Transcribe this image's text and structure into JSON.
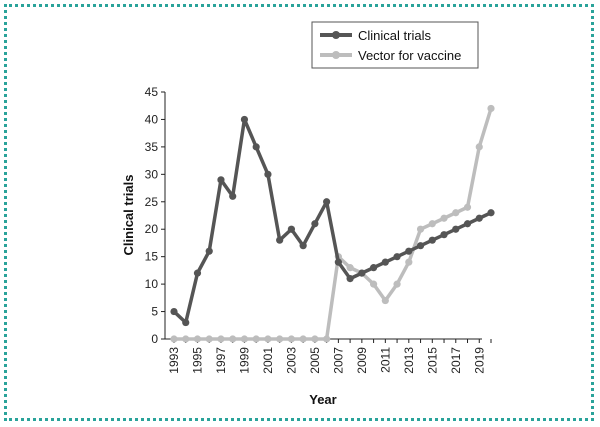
{
  "chart_data": {
    "type": "line",
    "xlabel": "Year",
    "ylabel": "Clinical trials",
    "xlim": [
      1993,
      2020
    ],
    "ylim": [
      0,
      45
    ],
    "yticks": [
      0,
      5,
      10,
      15,
      20,
      25,
      30,
      35,
      40,
      45
    ],
    "xticks": [
      "1993",
      "1995",
      "1997",
      "1999",
      "2001",
      "2003",
      "2005",
      "2007",
      "2009",
      "2011",
      "2013",
      "2015",
      "2017",
      "2019"
    ],
    "grid": false,
    "legend_position": "top-right",
    "x": [
      1993,
      1994,
      1995,
      1996,
      1997,
      1998,
      1999,
      2000,
      2001,
      2002,
      2003,
      2004,
      2005,
      2006,
      2007,
      2008,
      2009,
      2010,
      2011,
      2012,
      2013,
      2014,
      2015,
      2016,
      2017,
      2018,
      2019,
      2020
    ],
    "series": [
      {
        "name": "Clinical trials",
        "color": "#555555",
        "values": [
          5,
          3,
          12,
          16,
          29,
          26,
          40,
          35,
          30,
          18,
          20,
          17,
          21,
          25,
          14,
          11,
          12,
          13,
          14,
          15,
          16,
          17,
          18,
          19,
          20,
          21,
          22,
          23
        ]
      },
      {
        "name": "Vector for vaccine",
        "color": "#bdbdbd",
        "values": [
          0,
          0,
          0,
          0,
          0,
          0,
          0,
          0,
          0,
          0,
          0,
          0,
          0,
          0,
          15,
          13,
          12,
          10,
          7,
          10,
          14,
          20,
          21,
          22,
          23,
          24,
          35,
          42
        ]
      }
    ]
  }
}
